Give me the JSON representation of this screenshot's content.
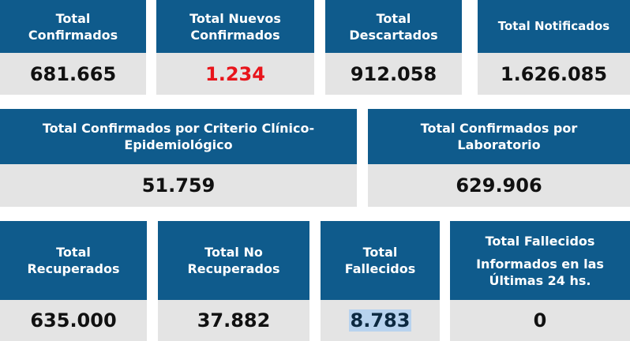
{
  "row1": [
    {
      "title": "Total Confirmados",
      "value": "681.665"
    },
    {
      "title": "Total Nuevos Confirmados",
      "value": "1.234"
    },
    {
      "title": "Total Descartados",
      "value": "912.058"
    },
    {
      "title": "Total Notificados",
      "value": "1.626.085"
    }
  ],
  "row2": [
    {
      "title": "Total Confirmados por Criterio Clínico-Epidemiológico",
      "value": "51.759"
    },
    {
      "title": "Total Confirmados por Laboratorio",
      "value": "629.906"
    }
  ],
  "row3": [
    {
      "title": "Total Recuperados",
      "value": "635.000"
    },
    {
      "title": "Total No Recuperados",
      "value": "37.882"
    },
    {
      "title": "Total Fallecidos",
      "value": "8.783"
    },
    {
      "title_line1": "Total Fallecidos",
      "title_line2": "Informados en las Últimas 24 hs.",
      "value": "0"
    }
  ],
  "colors": {
    "header": "#0f5b8c",
    "value_bg": "#e4e4e4",
    "highlight": "#e8141b"
  }
}
